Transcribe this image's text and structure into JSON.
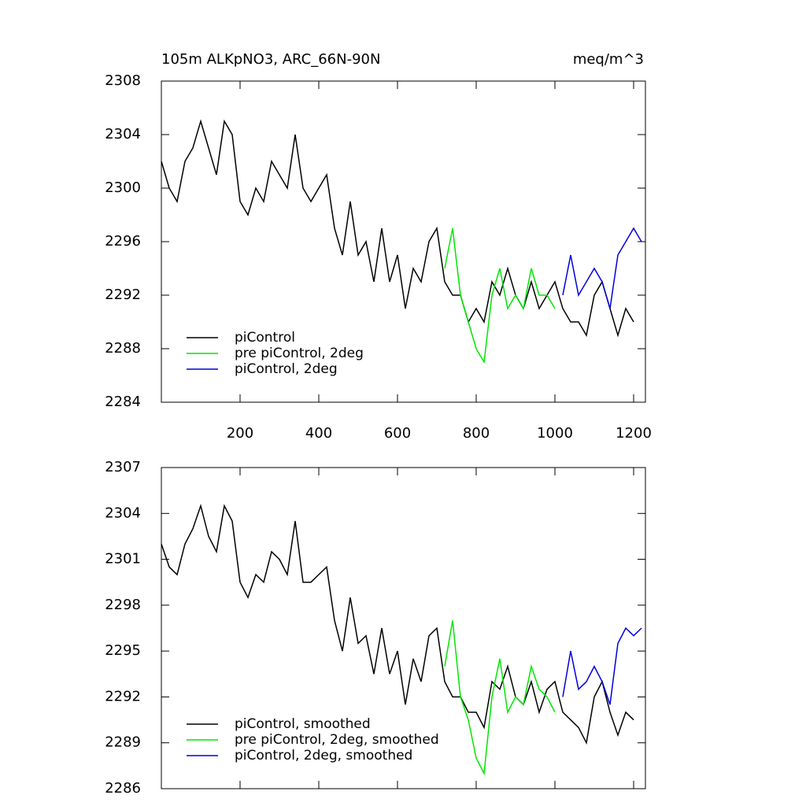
{
  "chart_data": [
    {
      "type": "line",
      "title": "105m ALKpNO3, ARC_66N-90N",
      "subtitle": "meq/m^3",
      "x": [
        0,
        20,
        40,
        60,
        80,
        100,
        120,
        140,
        160,
        180,
        200,
        220,
        240,
        260,
        280,
        300,
        320,
        340,
        360,
        380,
        400,
        420,
        440,
        460,
        480,
        500,
        520,
        540,
        560,
        580,
        600,
        620,
        640,
        660,
        680,
        700,
        720,
        740,
        760,
        780,
        800,
        820,
        840,
        860,
        880,
        900,
        920,
        940,
        960,
        980,
        1000,
        1020,
        1040,
        1060,
        1080,
        1100,
        1120,
        1140,
        1160,
        1180,
        1200,
        1220
      ],
      "xlim": [
        0,
        1230
      ],
      "xticks": [
        200,
        400,
        600,
        800,
        1000,
        1200
      ],
      "xtick_labels": true,
      "ylim": [
        2284,
        2308
      ],
      "yticks": [
        2284,
        2288,
        2292,
        2296,
        2300,
        2304,
        2308
      ],
      "legend": "lower left",
      "series": [
        {
          "name": "piControl",
          "color": "#000000",
          "values": [
            2302,
            2300,
            2299,
            2302,
            2303,
            2305,
            2303,
            2301,
            2305,
            2304,
            2299,
            2298,
            2300,
            2299,
            2302,
            2301,
            2300,
            2304,
            2300,
            2299,
            2300,
            2301,
            2297,
            2295,
            2299,
            2295,
            2296,
            2293,
            2297,
            2293,
            2295,
            2291,
            2294,
            2293,
            2296,
            2297,
            2293,
            2292,
            2292,
            2290,
            2291,
            2290,
            2293,
            2292,
            2294,
            2292,
            2291,
            2293,
            2291,
            2292,
            2293,
            2291,
            2290,
            2290,
            2289,
            2292,
            2293,
            2291,
            2289,
            2291,
            2290,
            null
          ]
        },
        {
          "name": "pre piControl, 2deg",
          "color": "#00e600",
          "values": [
            null,
            null,
            null,
            null,
            null,
            null,
            null,
            null,
            null,
            null,
            null,
            null,
            null,
            null,
            null,
            null,
            null,
            null,
            null,
            null,
            null,
            null,
            null,
            null,
            null,
            null,
            null,
            null,
            null,
            null,
            null,
            null,
            null,
            null,
            null,
            null,
            2294,
            2297,
            2292,
            2290,
            2288,
            2287,
            2292,
            2294,
            2291,
            2292,
            2291,
            2294,
            2292,
            2292,
            2291,
            null,
            null,
            null,
            null,
            null,
            null,
            null,
            null,
            null,
            null,
            null
          ]
        },
        {
          "name": "piControl, 2deg",
          "color": "#0000dd",
          "values": [
            null,
            null,
            null,
            null,
            null,
            null,
            null,
            null,
            null,
            null,
            null,
            null,
            null,
            null,
            null,
            null,
            null,
            null,
            null,
            null,
            null,
            null,
            null,
            null,
            null,
            null,
            null,
            null,
            null,
            null,
            null,
            null,
            null,
            null,
            null,
            null,
            null,
            null,
            null,
            null,
            null,
            null,
            null,
            null,
            null,
            null,
            null,
            null,
            null,
            null,
            null,
            2292,
            2295,
            2292,
            2293,
            2294,
            2293,
            2291,
            2295,
            2296,
            2297,
            2296
          ]
        }
      ]
    },
    {
      "type": "line",
      "x": [
        0,
        20,
        40,
        60,
        80,
        100,
        120,
        140,
        160,
        180,
        200,
        220,
        240,
        260,
        280,
        300,
        320,
        340,
        360,
        380,
        400,
        420,
        440,
        460,
        480,
        500,
        520,
        540,
        560,
        580,
        600,
        620,
        640,
        660,
        680,
        700,
        720,
        740,
        760,
        780,
        800,
        820,
        840,
        860,
        880,
        900,
        920,
        940,
        960,
        980,
        1000,
        1020,
        1040,
        1060,
        1080,
        1100,
        1120,
        1140,
        1160,
        1180,
        1200,
        1220
      ],
      "xlim": [
        0,
        1230
      ],
      "xticks": [
        200,
        400,
        600,
        800,
        1000,
        1200
      ],
      "xtick_labels": false,
      "ylim": [
        2286,
        2307
      ],
      "yticks": [
        2286,
        2289,
        2292,
        2295,
        2298,
        2301,
        2304,
        2307
      ],
      "legend": "lower left",
      "series": [
        {
          "name": "piControl, smoothed",
          "color": "#000000",
          "values": [
            2302,
            2300.5,
            2300,
            2302,
            2303,
            2304.5,
            2302.5,
            2301.5,
            2304.5,
            2303.5,
            2299.5,
            2298.5,
            2300,
            2299.5,
            2301.5,
            2301,
            2300,
            2303.5,
            2299.5,
            2299.5,
            2300,
            2300.5,
            2297,
            2295,
            2298.5,
            2295.5,
            2296,
            2293.5,
            2296.5,
            2293.5,
            2295,
            2291.5,
            2294.5,
            2293,
            2296,
            2296.5,
            2293,
            2292,
            2292,
            2291,
            2291,
            2290,
            2293,
            2292.5,
            2294,
            2292,
            2291.5,
            2293,
            2291,
            2292.5,
            2293,
            2291,
            2290.5,
            2290,
            2289,
            2292,
            2293,
            2291,
            2289.5,
            2291,
            2290.5,
            null
          ]
        },
        {
          "name": "pre piControl, 2deg, smoothed",
          "color": "#00e600",
          "values": [
            null,
            null,
            null,
            null,
            null,
            null,
            null,
            null,
            null,
            null,
            null,
            null,
            null,
            null,
            null,
            null,
            null,
            null,
            null,
            null,
            null,
            null,
            null,
            null,
            null,
            null,
            null,
            null,
            null,
            null,
            null,
            null,
            null,
            null,
            null,
            null,
            2294,
            2297,
            2292,
            2290.5,
            2288,
            2287,
            2292,
            2294.5,
            2291,
            2292,
            2291.5,
            2294,
            2292.5,
            2292,
            2291,
            null,
            null,
            null,
            null,
            null,
            null,
            null,
            null,
            null,
            null,
            null
          ]
        },
        {
          "name": "piControl, 2deg, smoothed",
          "color": "#0000dd",
          "values": [
            null,
            null,
            null,
            null,
            null,
            null,
            null,
            null,
            null,
            null,
            null,
            null,
            null,
            null,
            null,
            null,
            null,
            null,
            null,
            null,
            null,
            null,
            null,
            null,
            null,
            null,
            null,
            null,
            null,
            null,
            null,
            null,
            null,
            null,
            null,
            null,
            null,
            null,
            null,
            null,
            null,
            null,
            null,
            null,
            null,
            null,
            null,
            null,
            null,
            null,
            null,
            2292,
            2295,
            2292.5,
            2293,
            2294,
            2293,
            2291.5,
            2295.5,
            2296.5,
            2296,
            2296.5
          ]
        }
      ]
    }
  ]
}
